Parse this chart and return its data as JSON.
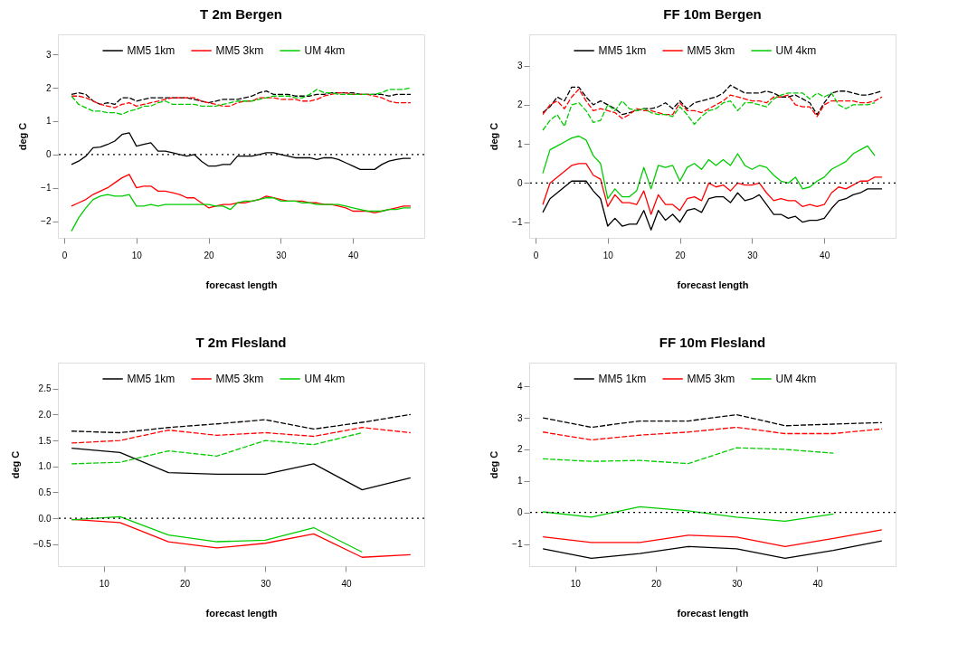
{
  "chart_data": [
    {
      "type": "line",
      "title": "T 2m Bergen",
      "xlabel": "forecast length",
      "ylabel": "deg C",
      "xlim": [
        -0.88,
        49.88
      ],
      "ylim": [
        -2.5,
        3.6
      ],
      "xticks": [
        0,
        10,
        20,
        30,
        40
      ],
      "yticks": [
        -2,
        -1,
        0,
        1,
        2,
        3
      ],
      "legend": "top",
      "x": [
        1,
        2,
        3,
        4,
        5,
        6,
        7,
        8,
        9,
        10,
        11,
        12,
        13,
        14,
        15,
        16,
        17,
        18,
        19,
        20,
        21,
        22,
        23,
        24,
        25,
        26,
        27,
        28,
        29,
        30,
        31,
        32,
        33,
        34,
        35,
        36,
        37,
        38,
        39,
        40,
        41,
        42,
        43,
        44,
        45,
        46,
        47,
        48
      ],
      "ref_lines": [
        {
          "axis": "y",
          "value": 0,
          "color": "#000000",
          "line_style": "dotted"
        }
      ],
      "series": [
        {
          "name": "MM5 1km",
          "color": "#000000",
          "line_style": "solid",
          "values": [
            -0.3,
            -0.2,
            -0.05,
            0.2,
            0.22,
            0.3,
            0.4,
            0.6,
            0.65,
            0.25,
            0.3,
            0.35,
            0.1,
            0.1,
            0.05,
            0.0,
            -0.05,
            0.0,
            -0.2,
            -0.35,
            -0.35,
            -0.3,
            -0.3,
            -0.05,
            -0.05,
            -0.05,
            0.0,
            0.05,
            0.05,
            0.0,
            -0.05,
            -0.1,
            -0.1,
            -0.1,
            -0.15,
            -0.1,
            -0.1,
            -0.15,
            -0.25,
            -0.35,
            -0.45,
            -0.45,
            -0.45,
            -0.3,
            -0.2,
            -0.15,
            -0.12,
            -0.12
          ]
        },
        {
          "name": "MM5 3km",
          "color": "#ff0000",
          "line_style": "solid",
          "values": [
            -1.55,
            -1.45,
            -1.35,
            -1.2,
            -1.1,
            -1.0,
            -0.85,
            -0.7,
            -0.6,
            -1.0,
            -0.95,
            -0.95,
            -1.1,
            -1.1,
            -1.15,
            -1.2,
            -1.3,
            -1.3,
            -1.45,
            -1.6,
            -1.55,
            -1.5,
            -1.5,
            -1.45,
            -1.45,
            -1.4,
            -1.35,
            -1.25,
            -1.3,
            -1.35,
            -1.4,
            -1.4,
            -1.4,
            -1.45,
            -1.45,
            -1.5,
            -1.5,
            -1.55,
            -1.6,
            -1.7,
            -1.7,
            -1.7,
            -1.75,
            -1.7,
            -1.65,
            -1.6,
            -1.55,
            -1.55
          ]
        },
        {
          "name": "UM 4km",
          "color": "#00cc00",
          "line_style": "solid",
          "values": [
            -2.3,
            -1.9,
            -1.6,
            -1.35,
            -1.25,
            -1.2,
            -1.25,
            -1.25,
            -1.2,
            -1.55,
            -1.55,
            -1.5,
            -1.55,
            -1.5,
            -1.5,
            -1.5,
            -1.5,
            -1.5,
            -1.5,
            -1.5,
            -1.55,
            -1.55,
            -1.65,
            -1.45,
            -1.4,
            -1.4,
            -1.35,
            -1.3,
            -1.3,
            -1.4,
            -1.4,
            -1.4,
            -1.45,
            -1.45,
            -1.5,
            -1.5,
            -1.5,
            -1.5,
            -1.55,
            -1.6,
            -1.65,
            -1.7,
            -1.7,
            -1.7,
            -1.65,
            -1.65,
            -1.6,
            -1.6
          ]
        },
        {
          "color": "#000000",
          "line_style": "dashed",
          "values": [
            1.8,
            1.85,
            1.8,
            1.6,
            1.5,
            1.55,
            1.5,
            1.7,
            1.7,
            1.6,
            1.65,
            1.7,
            1.7,
            1.7,
            1.7,
            1.7,
            1.7,
            1.65,
            1.6,
            1.55,
            1.6,
            1.65,
            1.65,
            1.65,
            1.7,
            1.75,
            1.85,
            1.9,
            1.8,
            1.8,
            1.8,
            1.75,
            1.75,
            1.75,
            1.8,
            1.8,
            1.85,
            1.85,
            1.85,
            1.85,
            1.8,
            1.8,
            1.8,
            1.8,
            1.75,
            1.8,
            1.8,
            1.8
          ]
        },
        {
          "color": "#ff0000",
          "line_style": "dashed",
          "values": [
            1.75,
            1.75,
            1.7,
            1.6,
            1.5,
            1.45,
            1.4,
            1.5,
            1.55,
            1.45,
            1.5,
            1.55,
            1.6,
            1.65,
            1.7,
            1.7,
            1.7,
            1.7,
            1.6,
            1.55,
            1.5,
            1.45,
            1.45,
            1.55,
            1.6,
            1.6,
            1.7,
            1.7,
            1.7,
            1.65,
            1.65,
            1.65,
            1.6,
            1.6,
            1.65,
            1.75,
            1.8,
            1.85,
            1.85,
            1.8,
            1.8,
            1.8,
            1.75,
            1.7,
            1.6,
            1.55,
            1.55,
            1.55
          ]
        },
        {
          "color": "#00cc00",
          "line_style": "dashed",
          "values": [
            1.75,
            1.5,
            1.4,
            1.3,
            1.3,
            1.25,
            1.25,
            1.2,
            1.3,
            1.35,
            1.45,
            1.45,
            1.55,
            1.6,
            1.5,
            1.5,
            1.5,
            1.5,
            1.45,
            1.45,
            1.45,
            1.5,
            1.55,
            1.6,
            1.6,
            1.6,
            1.65,
            1.7,
            1.75,
            1.75,
            1.75,
            1.7,
            1.7,
            1.8,
            1.95,
            1.85,
            1.85,
            1.8,
            1.8,
            1.8,
            1.8,
            1.8,
            1.8,
            1.85,
            1.95,
            1.95,
            1.95,
            2.0
          ]
        }
      ]
    },
    {
      "type": "line",
      "title": "FF 10m Bergen",
      "xlabel": "forecast length",
      "ylabel": "deg C",
      "xlim": [
        -0.88,
        49.88
      ],
      "ylim": [
        -1.4,
        3.8
      ],
      "xticks": [
        0,
        10,
        20,
        30,
        40
      ],
      "yticks": [
        -1,
        0,
        1,
        2,
        3
      ],
      "legend": "top",
      "x": [
        1,
        2,
        3,
        4,
        5,
        6,
        7,
        8,
        9,
        10,
        11,
        12,
        13,
        14,
        15,
        16,
        17,
        18,
        19,
        20,
        21,
        22,
        23,
        24,
        25,
        26,
        27,
        28,
        29,
        30,
        31,
        32,
        33,
        34,
        35,
        36,
        37,
        38,
        39,
        40,
        41,
        42,
        43,
        44,
        45,
        46,
        47,
        48
      ],
      "ref_lines": [
        {
          "axis": "y",
          "value": 0,
          "color": "#000000",
          "line_style": "dotted"
        }
      ],
      "series": [
        {
          "name": "MM5 1km",
          "color": "#000000",
          "line_style": "solid",
          "values": [
            -0.75,
            -0.4,
            -0.25,
            -0.1,
            0.05,
            0.05,
            0.05,
            -0.2,
            -0.4,
            -1.1,
            -0.9,
            -1.1,
            -1.05,
            -1.05,
            -0.7,
            -1.2,
            -0.7,
            -0.95,
            -0.8,
            -1.0,
            -0.7,
            -0.65,
            -0.75,
            -0.4,
            -0.35,
            -0.35,
            -0.5,
            -0.25,
            -0.45,
            -0.4,
            -0.3,
            -0.55,
            -0.8,
            -0.8,
            -0.9,
            -0.85,
            -1.0,
            -0.95,
            -0.95,
            -0.9,
            -0.65,
            -0.45,
            -0.4,
            -0.3,
            -0.25,
            -0.15,
            -0.15,
            -0.15
          ]
        },
        {
          "name": "MM5 3km",
          "color": "#ff0000",
          "line_style": "solid",
          "values": [
            -0.55,
            0.0,
            0.15,
            0.3,
            0.45,
            0.5,
            0.5,
            0.2,
            0.1,
            -0.6,
            -0.3,
            -0.5,
            -0.5,
            -0.55,
            -0.2,
            -0.8,
            -0.3,
            -0.55,
            -0.55,
            -0.7,
            -0.4,
            -0.35,
            -0.45,
            0.0,
            -0.1,
            -0.05,
            -0.2,
            0.0,
            -0.05,
            -0.05,
            0.0,
            -0.25,
            -0.45,
            -0.4,
            -0.45,
            -0.45,
            -0.6,
            -0.55,
            -0.6,
            -0.55,
            -0.25,
            -0.1,
            -0.15,
            -0.05,
            0.05,
            0.05,
            0.15,
            0.15
          ]
        },
        {
          "name": "UM 4km",
          "color": "#00cc00",
          "line_style": "solid",
          "values": [
            0.25,
            0.85,
            0.95,
            1.05,
            1.15,
            1.2,
            1.1,
            0.7,
            0.5,
            -0.4,
            -0.15,
            -0.35,
            -0.35,
            -0.2,
            0.4,
            -0.15,
            0.45,
            0.4,
            0.45,
            0.05,
            0.4,
            0.5,
            0.35,
            0.6,
            0.45,
            0.6,
            0.45,
            0.75,
            0.45,
            0.35,
            0.45,
            0.4,
            0.2,
            0.05,
            0.0,
            0.15,
            -0.15,
            -0.1,
            0.05,
            0.15,
            0.35,
            0.45,
            0.55,
            0.75,
            0.85,
            0.95,
            0.7,
            null
          ]
        },
        {
          "color": "#000000",
          "line_style": "dashed",
          "values": [
            1.8,
            1.95,
            2.2,
            2.1,
            2.45,
            2.45,
            2.2,
            2.0,
            2.1,
            2.0,
            1.9,
            1.75,
            1.8,
            1.85,
            1.9,
            1.9,
            1.95,
            2.05,
            1.9,
            2.1,
            1.9,
            2.05,
            2.1,
            2.15,
            2.2,
            2.3,
            2.5,
            2.4,
            2.3,
            2.3,
            2.3,
            2.35,
            2.3,
            2.2,
            2.2,
            2.25,
            2.15,
            2.05,
            1.75,
            2.05,
            2.3,
            2.35,
            2.35,
            2.3,
            2.25,
            2.25,
            2.3,
            2.35
          ]
        },
        {
          "color": "#ff0000",
          "line_style": "dashed",
          "values": [
            1.75,
            2.0,
            2.1,
            1.9,
            2.2,
            2.4,
            2.1,
            1.85,
            1.9,
            1.85,
            1.8,
            1.65,
            1.75,
            1.9,
            1.85,
            1.85,
            1.8,
            1.75,
            1.75,
            2.05,
            1.85,
            1.85,
            1.8,
            1.9,
            2.0,
            2.1,
            2.25,
            2.2,
            2.15,
            2.1,
            2.1,
            2.05,
            2.2,
            2.2,
            2.25,
            2.0,
            1.95,
            1.95,
            1.7,
            2.0,
            2.1,
            2.1,
            2.1,
            2.1,
            2.05,
            2.05,
            2.1,
            2.2
          ]
        },
        {
          "color": "#00cc00",
          "line_style": "dashed",
          "values": [
            1.35,
            1.6,
            1.75,
            1.45,
            2.0,
            2.05,
            1.85,
            1.55,
            1.6,
            2.0,
            1.85,
            2.1,
            1.9,
            1.85,
            1.9,
            1.8,
            1.75,
            1.75,
            1.7,
            1.95,
            1.75,
            1.5,
            1.7,
            1.85,
            1.9,
            2.05,
            2.1,
            1.85,
            2.05,
            2.05,
            2.0,
            1.95,
            2.15,
            2.25,
            2.3,
            2.3,
            2.3,
            2.15,
            2.3,
            2.2,
            2.3,
            2.0,
            1.9,
            2.0,
            2.0,
            2.0,
            2.05,
            null
          ]
        }
      ]
    },
    {
      "type": "line",
      "title": "T 2m Flesland",
      "xlabel": "forecast length",
      "ylabel": "deg C",
      "xlim": [
        4.3,
        49.7
      ],
      "ylim": [
        -0.92,
        3.0
      ],
      "xticks": [
        10,
        20,
        30,
        40
      ],
      "yticks": [
        -0.5,
        {
          "value": 0,
          "label": "0.0"
        },
        0.5,
        {
          "value": 1,
          "label": "1.0"
        },
        1.5,
        {
          "value": 2,
          "label": "2.0"
        },
        2.5
      ],
      "legend": "top",
      "x": [
        6,
        12,
        18,
        24,
        30,
        36,
        42,
        48
      ],
      "ref_lines": [
        {
          "axis": "y",
          "value": 0,
          "color": "#000000",
          "line_style": "dotted"
        }
      ],
      "series": [
        {
          "name": "MM5 1km",
          "color": "#000000",
          "line_style": "solid",
          "values": [
            1.35,
            1.27,
            0.88,
            0.85,
            0.85,
            1.05,
            0.55,
            0.78
          ]
        },
        {
          "name": "MM5 3km",
          "color": "#ff0000",
          "line_style": "solid",
          "values": [
            -0.02,
            -0.08,
            -0.45,
            -0.57,
            -0.48,
            -0.3,
            -0.75,
            -0.7
          ]
        },
        {
          "name": "UM 4km",
          "color": "#00cc00",
          "line_style": "solid",
          "values": [
            -0.03,
            0.03,
            -0.32,
            -0.45,
            -0.42,
            -0.18,
            -0.65,
            null
          ]
        },
        {
          "color": "#000000",
          "line_style": "dashed",
          "values": [
            1.68,
            1.65,
            1.75,
            1.82,
            1.9,
            1.72,
            1.85,
            2.0
          ]
        },
        {
          "color": "#ff0000",
          "line_style": "dashed",
          "values": [
            1.45,
            1.5,
            1.7,
            1.6,
            1.65,
            1.58,
            1.75,
            1.65
          ]
        },
        {
          "color": "#00cc00",
          "line_style": "dashed",
          "values": [
            1.05,
            1.08,
            1.3,
            1.2,
            1.5,
            1.42,
            1.65,
            null
          ]
        }
      ]
    },
    {
      "type": "line",
      "title": "FF 10m Flesland",
      "xlabel": "forecast length",
      "ylabel": "deg C",
      "xlim": [
        4.3,
        49.7
      ],
      "ylim": [
        -1.7,
        4.75
      ],
      "xticks": [
        10,
        20,
        30,
        40
      ],
      "yticks": [
        -1,
        0,
        1,
        2,
        3,
        4
      ],
      "legend": "top",
      "x": [
        6,
        12,
        18,
        24,
        30,
        36,
        42,
        48
      ],
      "ref_lines": [
        {
          "axis": "y",
          "value": 0,
          "color": "#000000",
          "line_style": "dotted"
        }
      ],
      "series": [
        {
          "name": "MM5 1km",
          "color": "#000000",
          "line_style": "solid",
          "values": [
            -1.15,
            -1.45,
            -1.3,
            -1.08,
            -1.15,
            -1.45,
            -1.2,
            -0.9
          ]
        },
        {
          "name": "MM5 3km",
          "color": "#ff0000",
          "line_style": "solid",
          "values": [
            -0.77,
            -0.95,
            -0.95,
            -0.72,
            -0.78,
            -1.08,
            -0.82,
            -0.55
          ]
        },
        {
          "name": "UM 4km",
          "color": "#00cc00",
          "line_style": "solid",
          "values": [
            0.02,
            -0.15,
            0.18,
            0.05,
            -0.15,
            -0.28,
            -0.05,
            null
          ]
        },
        {
          "color": "#000000",
          "line_style": "dashed",
          "values": [
            3.0,
            2.7,
            2.9,
            2.9,
            3.1,
            2.75,
            2.8,
            2.85
          ]
        },
        {
          "color": "#ff0000",
          "line_style": "dashed",
          "values": [
            2.55,
            2.3,
            2.45,
            2.55,
            2.7,
            2.5,
            2.5,
            2.65
          ]
        },
        {
          "color": "#00cc00",
          "line_style": "dashed",
          "values": [
            1.7,
            1.62,
            1.65,
            1.55,
            2.05,
            2.0,
            1.88,
            null
          ]
        }
      ]
    }
  ]
}
